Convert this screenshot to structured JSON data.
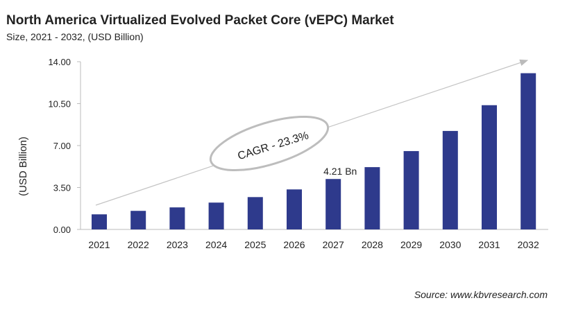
{
  "header": {
    "title": "North America Virtualized Evolved Packet Core (vEPC) Market",
    "subtitle": "Size, 2021 - 2032, (USD Billion)"
  },
  "footer": {
    "source": "Source: www.kbvresearch.com"
  },
  "chart_data": {
    "type": "bar",
    "title": "North America Virtualized Evolved Packet Core (vEPC) Market",
    "subtitle": "Size, 2021 - 2032, (USD Billion)",
    "xlabel": "",
    "ylabel": "(USD Billion)",
    "ylim": [
      0,
      14
    ],
    "yticks": [
      "0.00",
      "3.50",
      "7.00",
      "10.50",
      "14.00"
    ],
    "categories": [
      "2021",
      "2022",
      "2023",
      "2024",
      "2025",
      "2026",
      "2027",
      "2028",
      "2029",
      "2030",
      "2031",
      "2032"
    ],
    "values": [
      1.26,
      1.55,
      1.84,
      2.24,
      2.7,
      3.34,
      4.21,
      5.2,
      6.54,
      8.22,
      10.37,
      13.04
    ],
    "bar_color": "#2e3a8c",
    "grid": false,
    "annotations": {
      "data_label": "4.21 Bn",
      "data_label_category": "2027",
      "cagr": "CAGR - 23.3%"
    }
  }
}
